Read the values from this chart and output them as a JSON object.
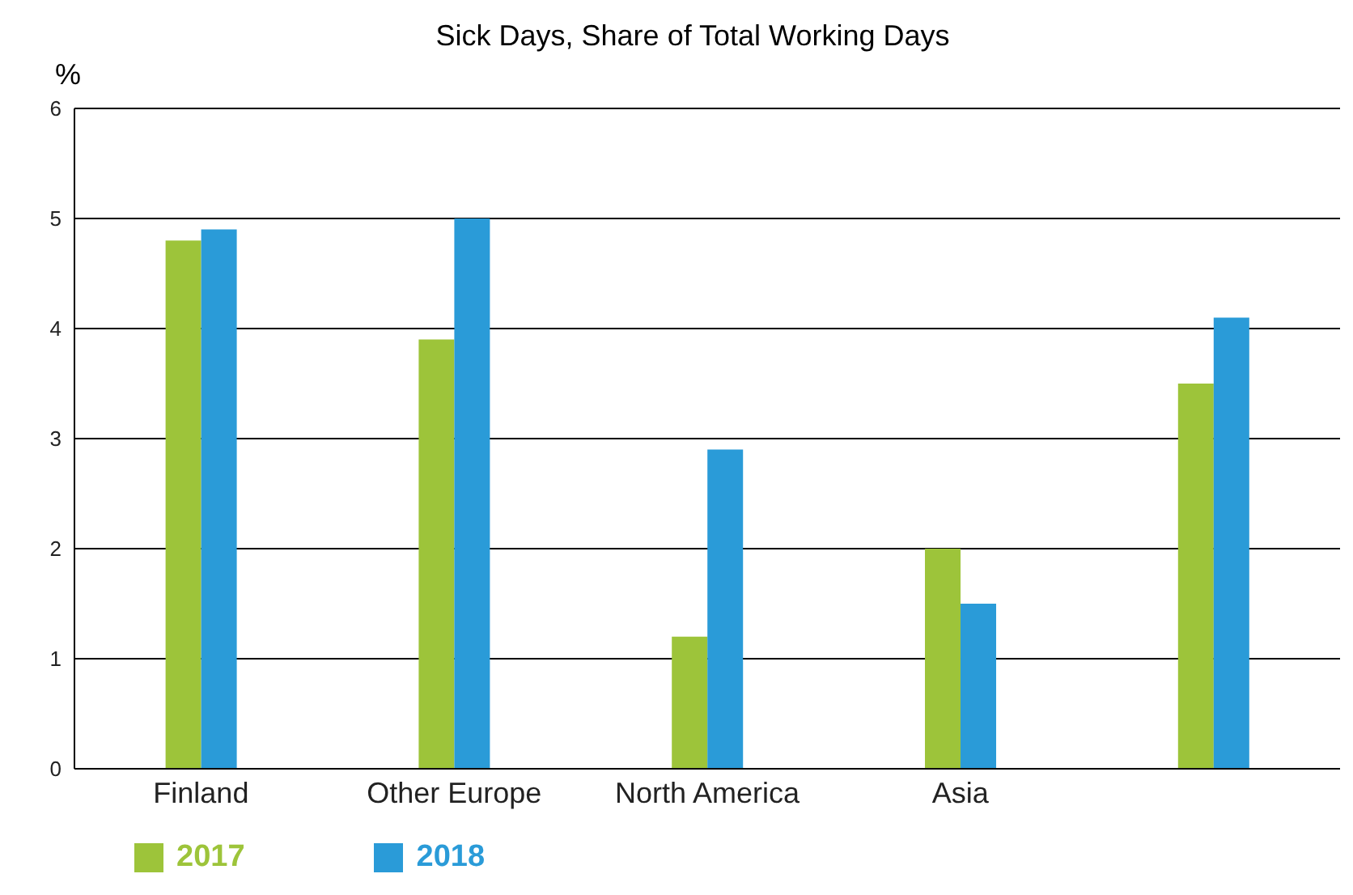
{
  "chart_data": {
    "type": "bar",
    "title": "Sick Days, Share of Total Working Days",
    "ylabel": "%",
    "categories": [
      "Finland",
      "Other Europe",
      "North America",
      "Asia",
      null
    ],
    "series": [
      {
        "name": "2017",
        "color": "#9dc43a",
        "values": [
          4.8,
          3.9,
          1.2,
          2.0,
          3.5
        ]
      },
      {
        "name": "2018",
        "color": "#2a9bd8",
        "values": [
          4.9,
          5.0,
          2.9,
          1.5,
          4.1
        ]
      }
    ],
    "ylim": [
      0,
      6
    ],
    "yticks": [
      0,
      1,
      2,
      3,
      4,
      5,
      6
    ],
    "grid": "y",
    "legend": "bottom left"
  }
}
